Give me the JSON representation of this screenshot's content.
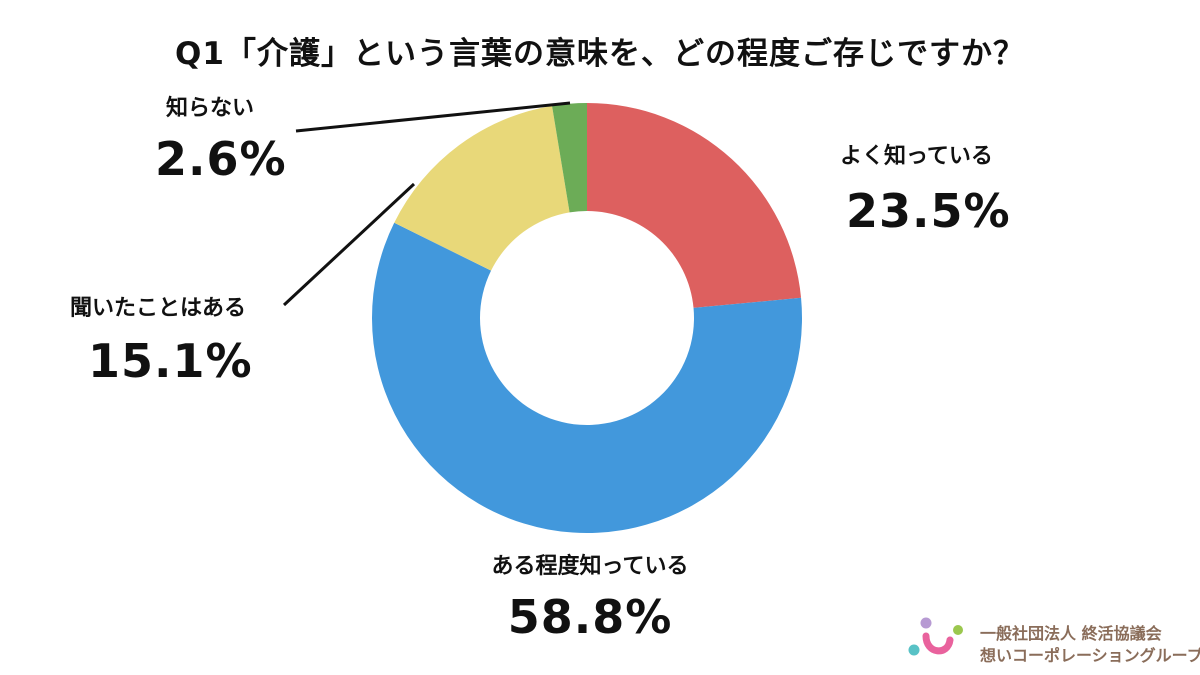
{
  "chart_data": {
    "type": "pie",
    "donut": true,
    "title": "Q1「介護」という言葉の意味を、どの程度ご存じですか？",
    "categories": [
      "よく知っている",
      "ある程度知っている",
      "聞いたことはある",
      "知らない"
    ],
    "values": [
      23.5,
      58.8,
      15.1,
      2.6
    ],
    "value_labels": [
      "23.5%",
      "58.8%",
      "15.1%",
      "2.6%"
    ],
    "colors": [
      "#dd605f",
      "#4298dc",
      "#e8d879",
      "#6cac57"
    ],
    "start": "12 o'clock",
    "direction": "clockwise",
    "legend": "none"
  },
  "org": {
    "line1": "一般社団法人 終活協議会",
    "line2": "想いコーポレーショングループ"
  }
}
